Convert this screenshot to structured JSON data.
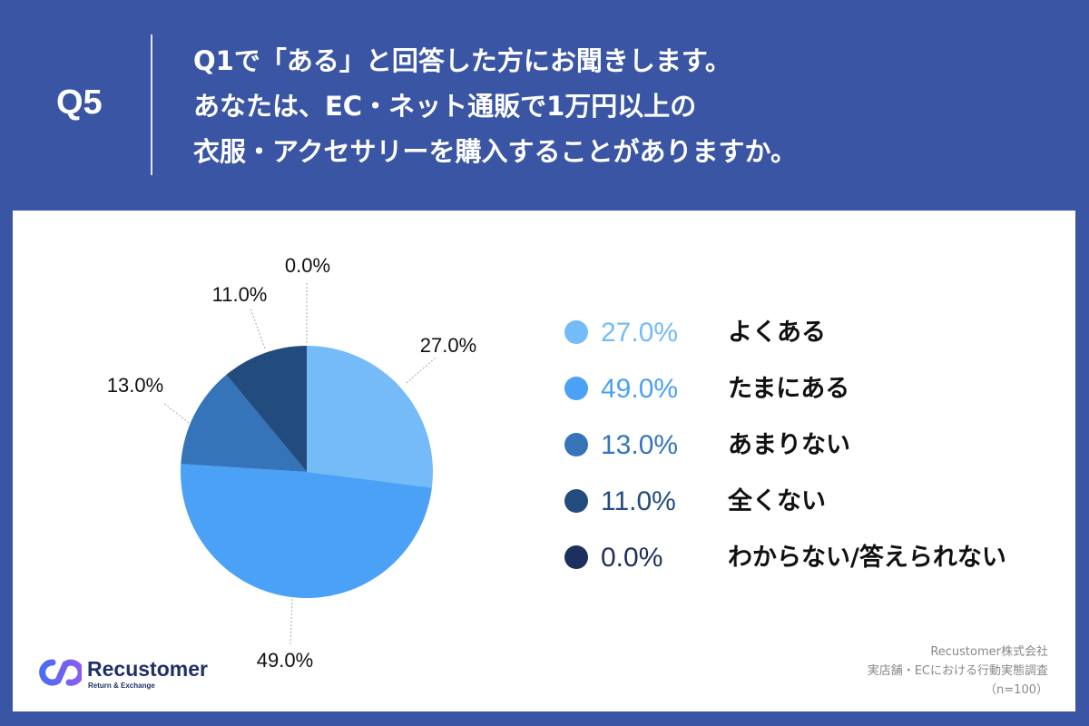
{
  "header": {
    "q_number": "Q5",
    "question_lines": [
      "Q1で「ある」と回答した方にお聞きします。",
      "あなたは、EC・ネット通販で1万円以上の",
      "衣服・アクセサリーを購入することがありますか。"
    ]
  },
  "chart_data": {
    "type": "pie",
    "title": "",
    "slices": [
      {
        "label": "よくある",
        "value": 27.0,
        "display": "27.0%",
        "color": "#74bbf8"
      },
      {
        "label": "たまにある",
        "value": 49.0,
        "display": "49.0%",
        "color": "#4aa1f5"
      },
      {
        "label": "あまりない",
        "value": 13.0,
        "display": "13.0%",
        "color": "#3574b9"
      },
      {
        "label": "全くない",
        "value": 11.0,
        "display": "11.0%",
        "color": "#234c7e"
      },
      {
        "label": "わからない/答えられない",
        "value": 0.0,
        "display": "0.0%",
        "color": "#1d2f5c"
      }
    ],
    "legend_position": "right"
  },
  "brand": {
    "name": "Recustomer",
    "tagline": "Return & Exchange",
    "accent_colors": [
      "#4b6cf0",
      "#8a5cf0"
    ]
  },
  "source": {
    "lines": [
      "Recustomer株式会社",
      "実店舗・ECにおける行動実態調査",
      "（n=100）"
    ]
  }
}
